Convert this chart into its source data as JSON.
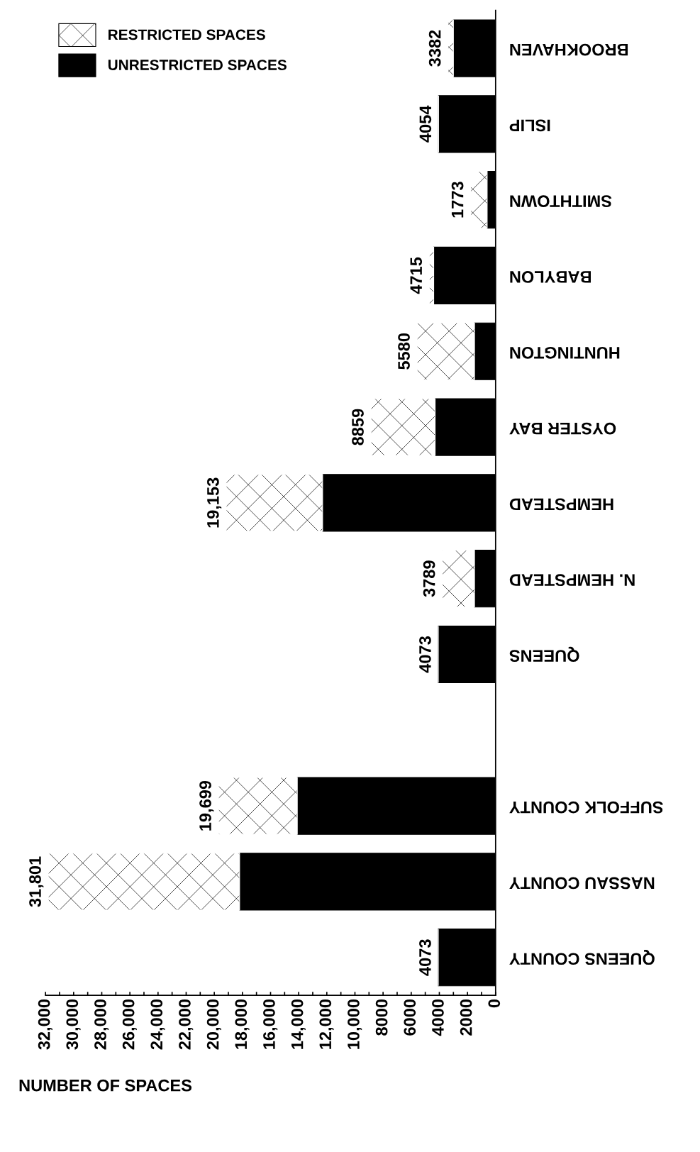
{
  "chart_data": {
    "type": "bar",
    "orientation": "horizontal",
    "stacked": true,
    "xlabel": "NUMBER OF SPACES",
    "categories": [
      "BROOKHAVEN",
      "ISLIP",
      "SMITHTOWN",
      "BABYLON",
      "HUNTINGTON",
      "OYSTER BAY",
      "HEMPSTEAD",
      "N. HEMPSTEAD",
      "QUEENS",
      null,
      "SUFFOLK COUNTY",
      "NASSAU COUNTY",
      "QUEENS COUNTY"
    ],
    "series": [
      {
        "name": "UNRESTRICTED SPACES",
        "color": "#000000",
        "values": [
          3000,
          4054,
          600,
          4400,
          1500,
          4300,
          12300,
          1500,
          4073,
          null,
          14100,
          18200,
          4073
        ]
      },
      {
        "name": "RESTRICTED SPACES",
        "color": "#ffffff",
        "values": [
          382,
          0,
          1173,
          315,
          4080,
          4559,
          6853,
          2289,
          0,
          null,
          5599,
          13601,
          0
        ]
      }
    ],
    "totals": [
      "3382",
      "4054",
      "1773",
      "4715",
      "5580",
      "8859",
      "19,153",
      "3789",
      "4073",
      null,
      "19,699",
      "31,801",
      "4073"
    ],
    "xlim": [
      32000,
      0
    ],
    "xticks": [
      {
        "value": 32000,
        "label": "32,000"
      },
      {
        "value": 31000,
        "label": null
      },
      {
        "value": 30000,
        "label": "30,000"
      },
      {
        "value": 29000,
        "label": null
      },
      {
        "value": 28000,
        "label": "28,000"
      },
      {
        "value": 27000,
        "label": null
      },
      {
        "value": 26000,
        "label": "26,000"
      },
      {
        "value": 25000,
        "label": null
      },
      {
        "value": 24000,
        "label": "24,000"
      },
      {
        "value": 23000,
        "label": null
      },
      {
        "value": 22000,
        "label": "22,000"
      },
      {
        "value": 21000,
        "label": null
      },
      {
        "value": 20000,
        "label": "20,000"
      },
      {
        "value": 19000,
        "label": null
      },
      {
        "value": 18000,
        "label": "18,000"
      },
      {
        "value": 17000,
        "label": null
      },
      {
        "value": 16000,
        "label": "16,000"
      },
      {
        "value": 15000,
        "label": null
      },
      {
        "value": 14000,
        "label": "14,000"
      },
      {
        "value": 13000,
        "label": null
      },
      {
        "value": 12000,
        "label": "12,000"
      },
      {
        "value": 11000,
        "label": null
      },
      {
        "value": 10000,
        "label": "10,000"
      },
      {
        "value": 9000,
        "label": null
      },
      8000,
      {
        "value": 7000,
        "label": null
      },
      6000,
      {
        "value": 5000,
        "label": null
      },
      4000,
      {
        "value": 3000,
        "label": null
      },
      2000,
      {
        "value": 1000,
        "label": null
      },
      0
    ],
    "grid": false,
    "legend": "top left"
  }
}
